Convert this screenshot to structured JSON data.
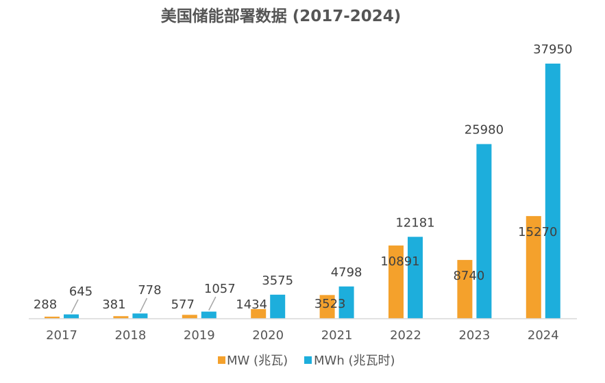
{
  "chart_data": {
    "type": "bar",
    "title": "美国储能部署数据 (2017-2024)",
    "categories": [
      "2017",
      "2018",
      "2019",
      "2020",
      "2021",
      "2022",
      "2023",
      "2024"
    ],
    "series": [
      {
        "name": "MW (兆瓦)",
        "color": "#F4A12C",
        "values": [
          288,
          381,
          577,
          1434,
          3523,
          10891,
          8740,
          15270
        ]
      },
      {
        "name": "MWh (兆瓦时)",
        "color": "#1DAEDC",
        "values": [
          645,
          778,
          1057,
          3575,
          4798,
          12181,
          25980,
          37950
        ]
      }
    ],
    "ylim": [
      0,
      38000
    ],
    "grid": false,
    "legend": "bottom",
    "xlabel": "",
    "ylabel": ""
  },
  "colors": {
    "axis": "#d9d9d9",
    "leader": "#a6a6a6",
    "text": "#555555"
  }
}
